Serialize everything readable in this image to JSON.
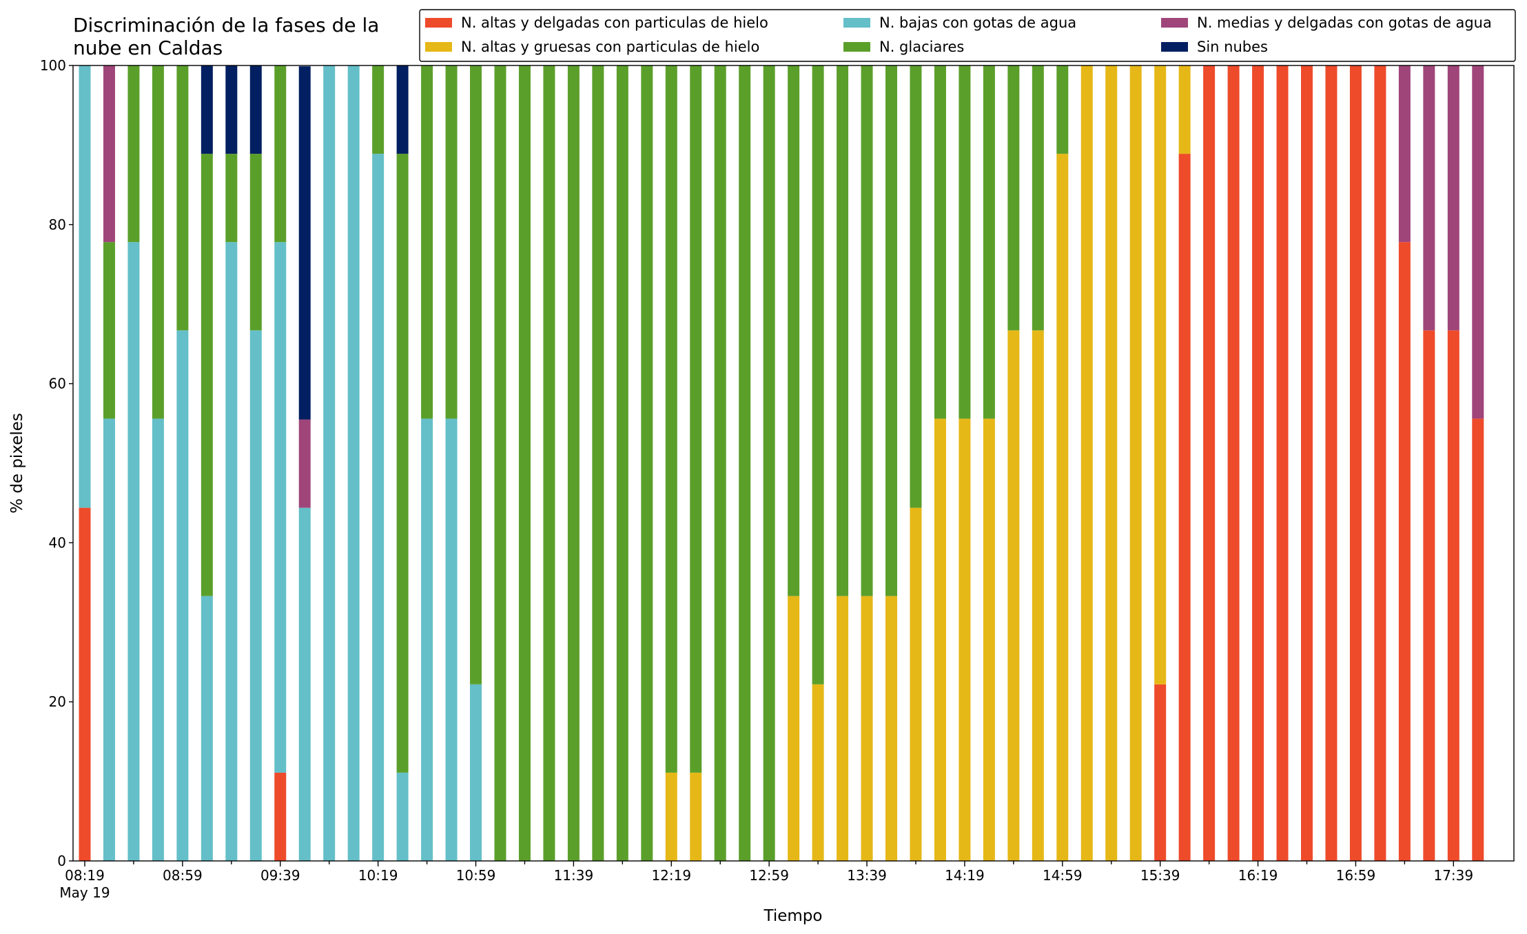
{
  "chart_data": {
    "type": "stacked_bar",
    "title": "Discriminación de la fases de la nube en Caldas",
    "xlabel": "Tiempo",
    "ylabel": "% de pixeles",
    "date_label": "May 19",
    "categories": [
      "08:19",
      null,
      null,
      null,
      "08:59",
      null,
      null,
      null,
      "09:39",
      null,
      null,
      null,
      "10:19",
      null,
      null,
      null,
      "10:59",
      null,
      null,
      null,
      "11:39",
      null,
      null,
      null,
      "12:19",
      null,
      null,
      null,
      "12:59",
      null,
      null,
      null,
      "13:39",
      null,
      null,
      null,
      "14:19",
      null,
      null,
      null,
      "14:59",
      null,
      null,
      null,
      "15:39",
      null,
      null,
      null,
      "16:19",
      null,
      null,
      null,
      "16:59",
      null,
      null,
      null,
      "17:39",
      null
    ],
    "ylim": [
      0,
      100
    ],
    "yticks": [
      0,
      20,
      40,
      60,
      80,
      100
    ],
    "legend": "top-right",
    "series": [
      {
        "name": "N. altas y delgadas con particulas de hielo",
        "color": "#ee4b2b",
        "values": [
          44.4,
          0,
          0,
          0,
          0,
          0,
          0,
          0,
          11.1,
          0,
          0,
          0,
          0,
          0,
          0,
          0,
          0,
          0,
          0,
          0,
          0,
          0,
          0,
          0,
          0,
          0,
          0,
          0,
          0,
          0,
          0,
          0,
          0,
          0,
          0,
          0,
          0,
          0,
          0,
          0,
          0,
          0,
          0,
          0,
          22.2,
          88.9,
          100,
          100,
          100,
          100,
          100,
          100,
          100,
          100,
          77.8,
          66.7,
          66.7,
          55.6
        ]
      },
      {
        "name": "N. altas y gruesas con particulas de hielo",
        "color": "#e6b817",
        "values": [
          0,
          0,
          0,
          0,
          0,
          0,
          0,
          0,
          0,
          0,
          0,
          0,
          0,
          0,
          0,
          0,
          0,
          0,
          0,
          0,
          0,
          0,
          0,
          0,
          11.1,
          11.1,
          0,
          0,
          0,
          33.3,
          22.2,
          33.3,
          33.3,
          33.3,
          44.4,
          55.6,
          55.6,
          55.6,
          66.7,
          66.7,
          88.9,
          100,
          100,
          100,
          77.8,
          11.1,
          0,
          0,
          0,
          0,
          0,
          0,
          0,
          0,
          0,
          0,
          0,
          0
        ]
      },
      {
        "name": "N. bajas con gotas de agua",
        "color": "#64bfc8",
        "values": [
          55.6,
          55.6,
          77.8,
          55.6,
          66.7,
          33.3,
          77.8,
          66.7,
          66.7,
          44.4,
          100,
          100,
          88.9,
          11.1,
          55.6,
          55.6,
          22.2,
          0,
          0,
          0,
          0,
          0,
          0,
          0,
          0,
          0,
          0,
          0,
          0,
          0,
          0,
          0,
          0,
          0,
          0,
          0,
          0,
          0,
          0,
          0,
          0,
          0,
          0,
          0,
          0,
          0,
          0,
          0,
          0,
          0,
          0,
          0,
          0,
          0,
          0,
          0,
          0,
          0
        ]
      },
      {
        "name": "N. glaciares",
        "color": "#5b9f2b",
        "values": [
          0,
          22.2,
          22.2,
          44.4,
          33.3,
          55.6,
          11.1,
          22.2,
          22.2,
          0,
          0,
          0,
          11.1,
          77.8,
          44.4,
          44.4,
          77.8,
          100,
          100,
          100,
          100,
          100,
          100,
          100,
          88.9,
          88.9,
          100,
          100,
          100,
          66.7,
          77.8,
          66.7,
          66.7,
          66.7,
          55.6,
          44.4,
          44.4,
          44.4,
          33.3,
          33.3,
          11.1,
          0,
          0,
          0,
          0,
          0,
          0,
          0,
          0,
          0,
          0,
          0,
          0,
          0,
          0,
          0,
          0,
          0
        ]
      },
      {
        "name": "N. medias y delgadas con gotas de agua",
        "color": "#a0457a",
        "values": [
          0,
          22.2,
          0,
          0,
          0,
          0,
          0,
          0,
          0,
          11.1,
          0,
          0,
          0,
          0,
          0,
          0,
          0,
          0,
          0,
          0,
          0,
          0,
          0,
          0,
          0,
          0,
          0,
          0,
          0,
          0,
          0,
          0,
          0,
          0,
          0,
          0,
          0,
          0,
          0,
          0,
          0,
          0,
          0,
          0,
          0,
          0,
          0,
          0,
          0,
          0,
          0,
          0,
          0,
          0,
          22.2,
          33.3,
          33.3,
          44.4
        ]
      },
      {
        "name": "Sin nubes",
        "color": "#022061",
        "values": [
          0,
          0,
          0,
          0,
          0,
          11.1,
          11.1,
          11.1,
          0,
          44.4,
          0,
          0,
          0,
          11.1,
          0,
          0,
          0,
          0,
          0,
          0,
          0,
          0,
          0,
          0,
          0,
          0,
          0,
          0,
          0,
          0,
          0,
          0,
          0,
          0,
          0,
          0,
          0,
          0,
          0,
          0,
          0,
          0,
          0,
          0,
          0,
          0,
          0,
          0,
          0,
          0,
          0,
          0,
          0,
          0,
          0,
          0,
          0,
          0
        ]
      }
    ]
  }
}
